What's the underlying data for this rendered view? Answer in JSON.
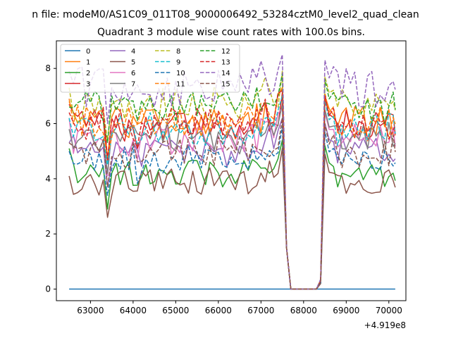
{
  "chart_data": {
    "type": "line",
    "suptitle": "n file: modeM0/AS1C09_011T08_9000006492_53284cztM0_level2_quad_clean",
    "title": "Quadrant 3 module wise count rates with 100.0s bins.",
    "xlabel": "",
    "ylabel": "",
    "x_offset_label": "+4.919e8",
    "xlim": [
      62200,
      70400
    ],
    "ylim": [
      -0.42,
      9.0
    ],
    "xticks": [
      63000,
      64000,
      65000,
      66000,
      67000,
      68000,
      69000,
      70000
    ],
    "yticks": [
      0,
      2,
      4,
      6,
      8
    ],
    "x": [
      62500,
      62600,
      62700,
      62800,
      62900,
      63000,
      63100,
      63200,
      63300,
      63400,
      63500,
      63600,
      63700,
      63800,
      63900,
      64000,
      64100,
      64200,
      64300,
      64400,
      64500,
      64600,
      64700,
      64800,
      64900,
      65000,
      65100,
      65200,
      65300,
      65400,
      65500,
      65600,
      65700,
      65800,
      65900,
      66000,
      66100,
      66200,
      66300,
      66400,
      66500,
      66600,
      66700,
      66800,
      66900,
      67000,
      67100,
      67200,
      67300,
      67400,
      67500,
      67600,
      67700,
      67800,
      67900,
      68000,
      68100,
      68200,
      68300,
      68400,
      68500,
      68600,
      68700,
      68800,
      68900,
      69000,
      69100,
      69200,
      69300,
      69400,
      69500,
      69600,
      69700,
      69800,
      69900,
      70000,
      70100,
      70150
    ],
    "gaps": [
      {
        "x": 67700,
        "y": 0
      },
      {
        "x": 67800,
        "y": 0
      },
      {
        "x": 67900,
        "y": 0
      },
      {
        "x": 68000,
        "y": 0
      },
      {
        "x": 68100,
        "y": 0
      },
      {
        "x": 68200,
        "y": 0
      },
      {
        "x": 68300,
        "y": 0
      }
    ],
    "series": [
      {
        "name": "0",
        "color": "#1f77b4",
        "dash": "solid",
        "base": 0.0,
        "amp": 0.0,
        "first": 0.0,
        "startx": 62500,
        "endx": 70150
      },
      {
        "name": "1",
        "color": "#ff7f0e",
        "dash": "solid",
        "base": 6.0,
        "amp": 0.7,
        "first": 6.8,
        "startx": 62500,
        "endx": 70150
      },
      {
        "name": "2",
        "color": "#2ca02c",
        "dash": "solid",
        "base": 4.2,
        "amp": 0.5,
        "first": 5.1,
        "startx": 62500,
        "endx": 70150
      },
      {
        "name": "3",
        "color": "#d62728",
        "dash": "solid",
        "base": 5.9,
        "amp": 0.6,
        "first": 6.7,
        "startx": 62500,
        "endx": 70150
      },
      {
        "name": "4",
        "color": "#9467bd",
        "dash": "solid",
        "base": 5.0,
        "amp": 0.6,
        "first": 5.3,
        "startx": 62500,
        "endx": 70150
      },
      {
        "name": "5",
        "color": "#8c564b",
        "dash": "solid",
        "base": 3.9,
        "amp": 0.5,
        "first": 4.1,
        "startx": 62500,
        "endx": 70150
      },
      {
        "name": "6",
        "color": "#e377c2",
        "dash": "solid",
        "base": 5.4,
        "amp": 0.6,
        "first": 6.2,
        "startx": 62500,
        "endx": 70150
      },
      {
        "name": "7",
        "color": "#7f7f7f",
        "dash": "solid",
        "base": 5.5,
        "amp": 0.6,
        "first": 5.8,
        "startx": 62500,
        "endx": 70150
      },
      {
        "name": "8",
        "color": "#bcbd22",
        "dash": "dashed",
        "base": 6.7,
        "amp": 0.7,
        "first": 7.3,
        "startx": 62500,
        "endx": 70150
      },
      {
        "name": "9",
        "color": "#17becf",
        "dash": "dashed",
        "base": 5.8,
        "amp": 0.6,
        "first": 6.2,
        "startx": 62500,
        "endx": 70150
      },
      {
        "name": "10",
        "color": "#1f77b4",
        "dash": "dashed",
        "base": 4.7,
        "amp": 0.5,
        "first": 5.0,
        "startx": 62500,
        "endx": 70150
      },
      {
        "name": "11",
        "color": "#ff7f0e",
        "dash": "dashed",
        "base": 6.1,
        "amp": 0.6,
        "first": 6.9,
        "startx": 62500,
        "endx": 70150
      },
      {
        "name": "12",
        "color": "#2ca02c",
        "dash": "dashed",
        "base": 6.6,
        "amp": 0.6,
        "first": 6.6,
        "startx": 62500,
        "endx": 70150
      },
      {
        "name": "13",
        "color": "#d62728",
        "dash": "dashed",
        "base": 6.0,
        "amp": 0.6,
        "first": 6.4,
        "startx": 62500,
        "endx": 70150
      },
      {
        "name": "14",
        "color": "#9467bd",
        "dash": "dashed",
        "base": 7.3,
        "amp": 0.8,
        "first": 7.9,
        "startx": 62500,
        "endx": 70150
      },
      {
        "name": "15",
        "color": "#8c564b",
        "dash": "dashed",
        "base": 5.0,
        "amp": 0.6,
        "first": 5.3,
        "startx": 62500,
        "endx": 70150
      }
    ],
    "legend": {
      "placement": "top-left",
      "columns": 4
    }
  }
}
